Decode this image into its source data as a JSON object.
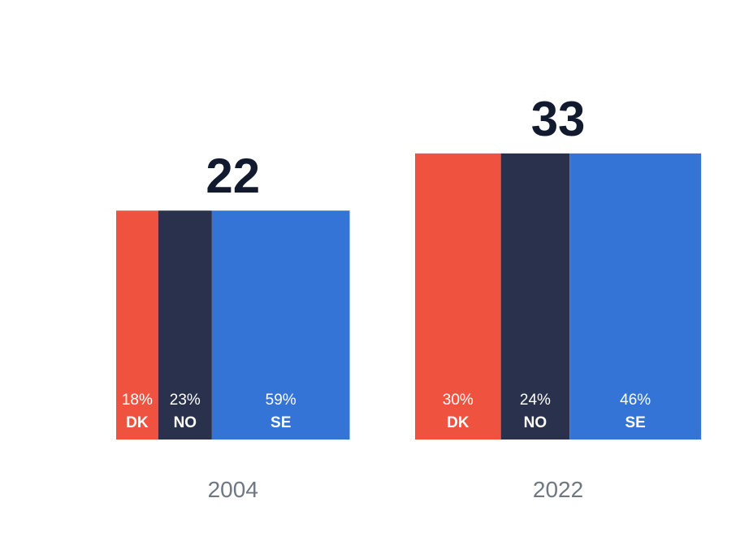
{
  "chart_data": {
    "type": "bar",
    "subtype": "stacked-width-mosaic",
    "groups": [
      {
        "year": "2004",
        "total": 22,
        "segments": [
          {
            "country": "DK",
            "share": 18,
            "share_label": "18%"
          },
          {
            "country": "NO",
            "share": 23,
            "share_label": "23%"
          },
          {
            "country": "SE",
            "share": 59,
            "share_label": "59%"
          }
        ]
      },
      {
        "year": "2022",
        "total": 33,
        "segments": [
          {
            "country": "DK",
            "share": 30,
            "share_label": "30%"
          },
          {
            "country": "NO",
            "share": 24,
            "share_label": "24%"
          },
          {
            "country": "SE",
            "share": 46,
            "share_label": "46%"
          }
        ]
      }
    ],
    "colors": {
      "DK": "#ef5340",
      "NO": "#29314d",
      "SE": "#3474d6"
    },
    "legend": "none",
    "grid": false
  }
}
